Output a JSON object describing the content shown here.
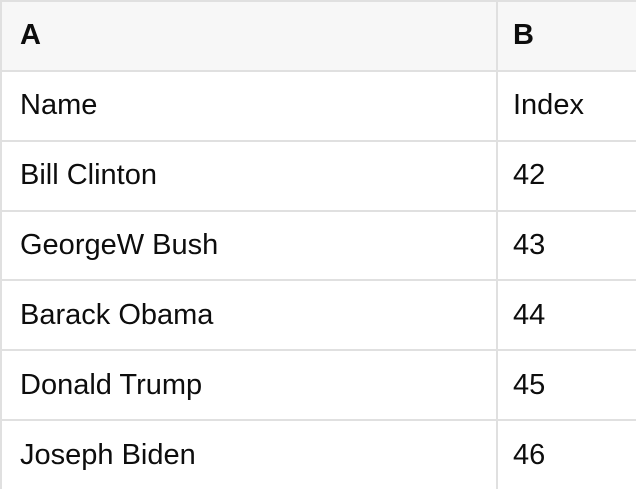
{
  "table": {
    "column_headers": [
      {
        "id": "A",
        "label": "A"
      },
      {
        "id": "B",
        "label": "B"
      }
    ],
    "rows": [
      {
        "a": "Name",
        "b": "Index"
      },
      {
        "a": "Bill Clinton",
        "b": "42"
      },
      {
        "a": "GeorgeW Bush",
        "b": "43"
      },
      {
        "a": "Barack Obama",
        "b": "44"
      },
      {
        "a": "Donald Trump",
        "b": "45"
      },
      {
        "a": "Joseph Biden",
        "b": "46"
      }
    ]
  },
  "colors": {
    "header_bg": "#f7f7f7",
    "row_bg": "#ffffff",
    "border": "#e0e0e0",
    "text": "#0d0d0d"
  }
}
